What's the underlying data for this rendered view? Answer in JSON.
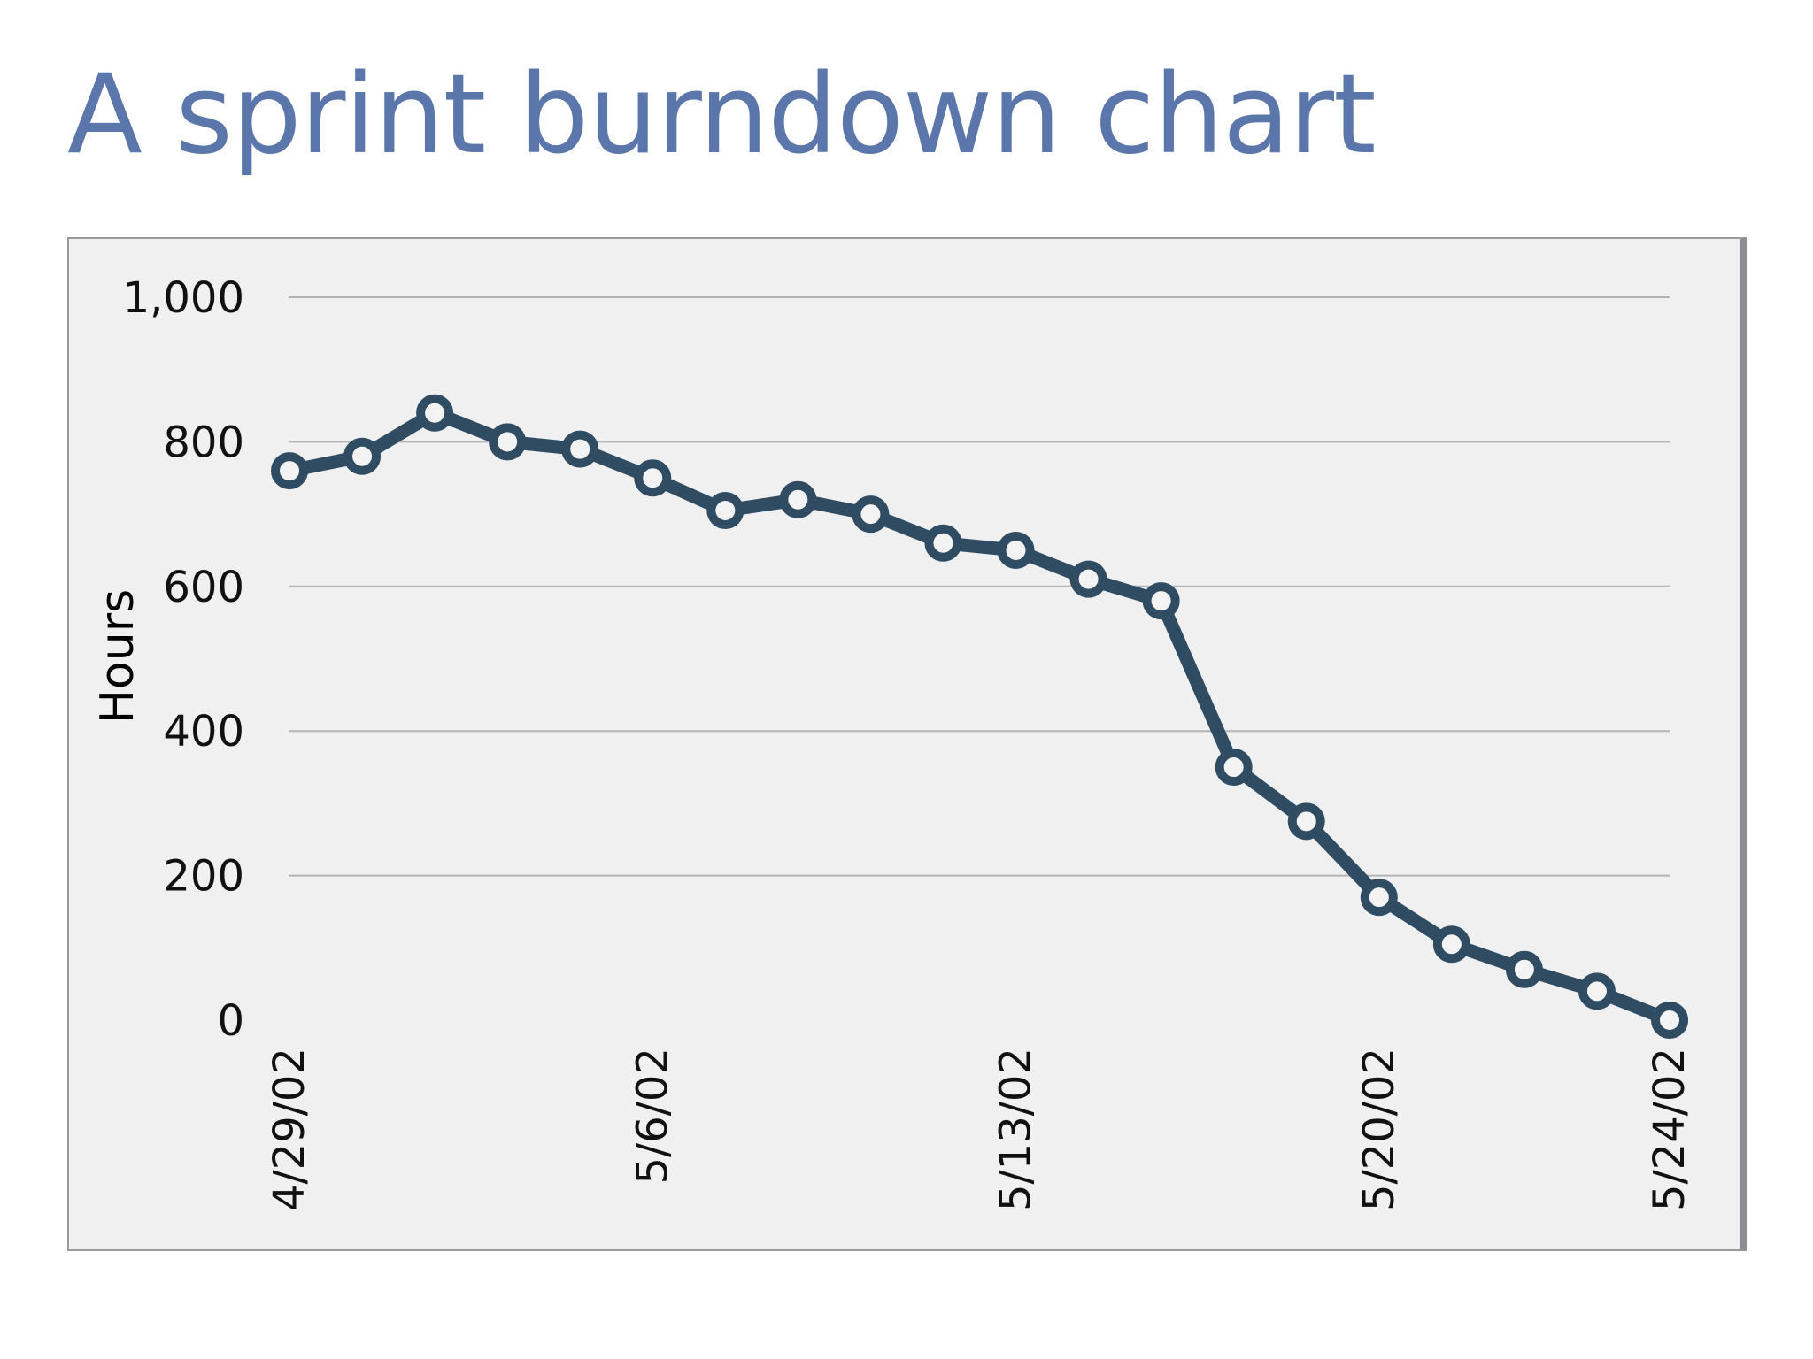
{
  "slide": {
    "title": "A sprint burndown chart"
  },
  "chart_data": {
    "type": "line",
    "title": "",
    "xlabel": "",
    "ylabel": "Hours",
    "ylim": [
      0,
      1000
    ],
    "yticks": [
      0,
      200,
      400,
      600,
      800,
      1000
    ],
    "ytick_labels": [
      "0",
      "200",
      "400",
      "600",
      "800",
      "1,000"
    ],
    "x_tick_labels": [
      {
        "index": 0,
        "label": "4/29/02"
      },
      {
        "index": 5,
        "label": "5/6/02"
      },
      {
        "index": 10,
        "label": "5/13/02"
      },
      {
        "index": 15,
        "label": "5/20/02"
      },
      {
        "index": 19,
        "label": "5/24/02"
      }
    ],
    "grid": "horizontal",
    "line_color": "#2f4c63",
    "series": [
      {
        "values": [
          760,
          780,
          840,
          800,
          790,
          750,
          705,
          720,
          700,
          660,
          650,
          610,
          580,
          350,
          275,
          170,
          105,
          70,
          40,
          0
        ]
      }
    ]
  }
}
